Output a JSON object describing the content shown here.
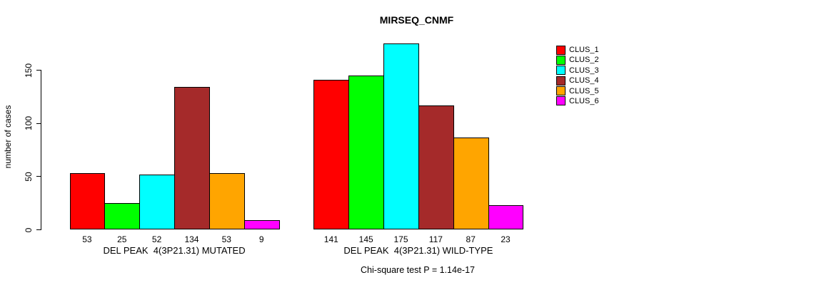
{
  "chart_data": {
    "type": "bar",
    "title": "MIRSEQ_CNMF",
    "ylabel": "number of cases",
    "yticks": [
      0,
      50,
      100,
      150
    ],
    "ylim": [
      0,
      175
    ],
    "grid": false,
    "legend_position": "top-right-outside",
    "groups": [
      {
        "label": "DEL PEAK  4(3P21.31) MUTATED",
        "values": [
          53,
          25,
          52,
          134,
          53,
          9
        ]
      },
      {
        "label": "DEL PEAK  4(3P21.31) WILD-TYPE",
        "values": [
          141,
          145,
          175,
          117,
          87,
          23
        ]
      }
    ],
    "series_colors": [
      "#FF0000",
      "#00FF00",
      "#00FFFF",
      "#A52A2A",
      "#FFA500",
      "#FF00FF"
    ],
    "legend": [
      {
        "label": "CLUS_1",
        "color": "#FF0000"
      },
      {
        "label": "CLUS_2",
        "color": "#00FF00"
      },
      {
        "label": "CLUS_3",
        "color": "#00FFFF"
      },
      {
        "label": "CLUS_4",
        "color": "#A52A2A"
      },
      {
        "label": "CLUS_5",
        "color": "#FFA500"
      },
      {
        "label": "CLUS_6",
        "color": "#FF00FF"
      }
    ],
    "annotation": "Chi-square test P = 1.14e-17"
  }
}
